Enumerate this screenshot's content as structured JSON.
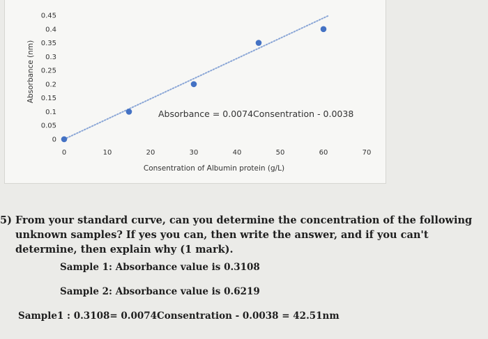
{
  "chart_data": {
    "type": "scatter",
    "title": "",
    "xlabel": "Consentration of Albumin protein (g/L)",
    "ylabel": "Absorbance (nm)",
    "xlim": [
      0,
      70
    ],
    "ylim": [
      0,
      0.45
    ],
    "x_ticks": [
      "0",
      "10",
      "20",
      "30",
      "40",
      "50",
      "60",
      "70"
    ],
    "y_ticks": [
      "0",
      "0.05",
      "0.1",
      "0.15",
      "0.2",
      "0.25",
      "0.3",
      "0.35",
      "0.4",
      "0.45"
    ],
    "points": [
      {
        "x": 0,
        "y": 0
      },
      {
        "x": 15,
        "y": 0.1
      },
      {
        "x": 30,
        "y": 0.2
      },
      {
        "x": 45,
        "y": 0.35
      },
      {
        "x": 60,
        "y": 0.4
      }
    ],
    "trendline": {
      "slope": 0.0074,
      "intercept": -0.0038,
      "style": "dotted"
    },
    "annotation": "Absorbance = 0.0074Consentration - 0.0038",
    "grid": false,
    "legend": "none",
    "point_color": "#4472c4"
  },
  "question": {
    "number": "5)",
    "lines": [
      "From your standard curve, can you determine the concentration of the following",
      "unknown samples? If yes you can, then write the answer, and if you can't",
      "determine, then explain why (1 mark)."
    ],
    "sample1": "Sample 1: Absorbance value is 0.3108",
    "sample2": "Sample 2: Absorbance value is 0.6219",
    "answer": "Sample1 : 0.3108= 0.0074Consentration - 0.0038 = 42.51nm"
  }
}
